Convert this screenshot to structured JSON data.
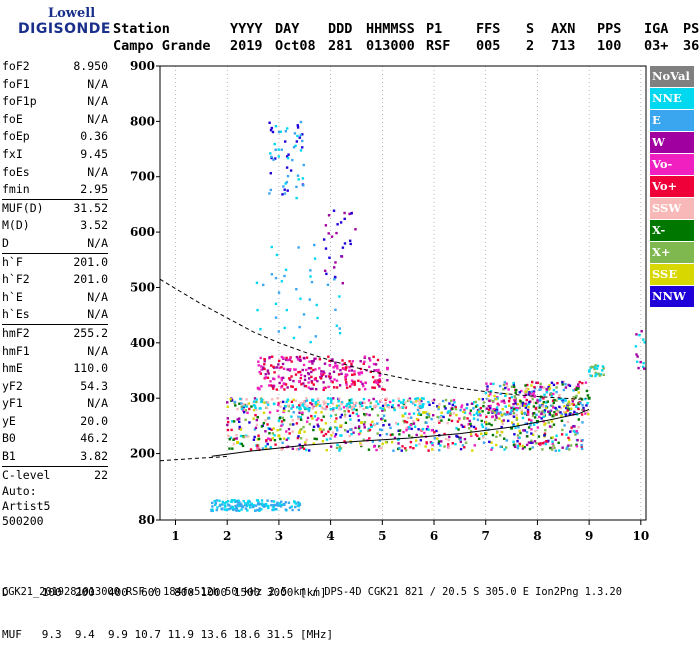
{
  "logo": {
    "line1": "Lowell",
    "line2": "DIGISONDE"
  },
  "header": {
    "labels": [
      "Station",
      "YYYY",
      "DAY",
      "DDD",
      "HHMMSS",
      "P1",
      "FFS",
      "S",
      "AXN",
      "PPS",
      "IGA",
      "PS"
    ],
    "values": [
      "Campo Grande",
      "2019",
      "Oct08",
      "281",
      "013000",
      "RSF",
      "005",
      "2",
      "713",
      "100",
      "03+",
      "36"
    ]
  },
  "params": [
    [
      {
        "k": "foF2",
        "v": "8.950"
      },
      {
        "k": "foF1",
        "v": "N/A"
      },
      {
        "k": "foF1p",
        "v": "N/A"
      },
      {
        "k": "foE",
        "v": "N/A"
      },
      {
        "k": "foEp",
        "v": "0.36"
      },
      {
        "k": "fxI",
        "v": "9.45"
      },
      {
        "k": "foEs",
        "v": "N/A"
      },
      {
        "k": "fmin",
        "v": "2.95"
      }
    ],
    [
      {
        "k": "MUF(D)",
        "v": "31.52"
      },
      {
        "k": "M(D)",
        "v": "3.52"
      },
      {
        "k": "D",
        "v": "N/A"
      }
    ],
    [
      {
        "k": "h`F",
        "v": "201.0"
      },
      {
        "k": "h`F2",
        "v": "201.0"
      },
      {
        "k": "h`E",
        "v": "N/A"
      },
      {
        "k": "h`Es",
        "v": "N/A"
      }
    ],
    [
      {
        "k": "hmF2",
        "v": "255.2"
      },
      {
        "k": "hmF1",
        "v": "N/A"
      },
      {
        "k": "hmE",
        "v": "110.0"
      },
      {
        "k": "yF2",
        "v": "54.3"
      },
      {
        "k": "yF1",
        "v": "N/A"
      },
      {
        "k": "yE",
        "v": "20.0"
      },
      {
        "k": "B0",
        "v": "46.2"
      },
      {
        "k": "B1",
        "v": "3.82"
      }
    ],
    [
      {
        "k": "C-level",
        "v": "22"
      }
    ]
  ],
  "auto": {
    "line1": "Auto:",
    "line2": "Artist5",
    "line3": "500200"
  },
  "legend": [
    {
      "label": "NoVal",
      "color": "#808080"
    },
    {
      "label": "NNE",
      "color": "#00d8f0"
    },
    {
      "label": "E",
      "color": "#3aa6f0"
    },
    {
      "label": "W",
      "color": "#a000a0"
    },
    {
      "label": "Vo-",
      "color": "#f020c0"
    },
    {
      "label": "Vo+",
      "color": "#f00038"
    },
    {
      "label": "SSW",
      "color": "#f8b8b8"
    },
    {
      "label": "X-",
      "color": "#007800"
    },
    {
      "label": "X+",
      "color": "#80b850"
    },
    {
      "label": "SSE",
      "color": "#d8d800"
    },
    {
      "label": "NNW",
      "color": "#2000d8"
    }
  ],
  "footer": {
    "d_row": "D     100  200  400  600  800 1000 1500 3000 [km]",
    "muf_row": "MUF   9.3  9.4  9.9 10.7 11.9 13.6 18.6 31.5 [MHz]",
    "file": "CGK21_2019281013000.RSF / 184fx512h 50 kHz 2.5 km / DPS-4D CGK21 821 / 20.5 S 305.0 E Ion2Png 1.3.20"
  },
  "chart_data": {
    "type": "scatter",
    "title": "",
    "xlabel": "",
    "ylabel": "",
    "xlim": [
      0.7,
      10.1
    ],
    "ylim": [
      80,
      900
    ],
    "xticks": [
      1,
      2,
      3,
      4,
      5,
      6,
      7,
      8,
      9,
      10
    ],
    "yticks": [
      80,
      200,
      300,
      400,
      500,
      600,
      700,
      800,
      900
    ],
    "grid": "dotted-vertical",
    "legend_position": "right",
    "series": [
      {
        "name": "X-",
        "color": "#007800",
        "x": [
          6.5,
          7.0,
          7.5,
          8.0,
          8.3,
          8.6,
          8.8,
          9.0
        ],
        "y": [
          228,
          236,
          246,
          258,
          268,
          280,
          290,
          300
        ]
      },
      {
        "name": "Vo-",
        "color": "#f020c0",
        "x": [
          2.6,
          2.9,
          3.1,
          3.4,
          3.7,
          4.0,
          4.3,
          4.6,
          4.9,
          5.1
        ],
        "y": [
          318,
          322,
          326,
          330,
          334,
          338,
          342,
          346,
          350,
          354
        ]
      },
      {
        "name": "SSE",
        "color": "#d8d800",
        "x": [
          2.2,
          2.6,
          3.0,
          3.4,
          3.8,
          4.2,
          4.6,
          5.0,
          5.4,
          5.8
        ],
        "y": [
          220,
          226,
          232,
          238,
          244,
          250,
          256,
          262,
          268,
          274
        ]
      },
      {
        "name": "E",
        "color": "#3aa6f0",
        "x": [
          1.7,
          1.9,
          2.1,
          2.3,
          2.5,
          2.7,
          2.9,
          3.1,
          3.4
        ],
        "y": [
          98,
          100,
          102,
          104,
          104,
          106,
          106,
          108,
          108
        ]
      }
    ],
    "curves": [
      {
        "name": "profile",
        "style": "solid",
        "x": [
          1.7,
          2.5,
          3.5,
          4.5,
          5.5,
          6.5,
          7.5,
          8.3,
          8.8,
          9.0
        ],
        "y": [
          195,
          205,
          215,
          222,
          228,
          236,
          248,
          262,
          272,
          280
        ]
      },
      {
        "name": "trace",
        "style": "dashed",
        "x": [
          0.7,
          1.0,
          1.5,
          2.0,
          2.5,
          3.0,
          3.5,
          4.0,
          4.5,
          5.0,
          5.5,
          6.0,
          6.5,
          7.0,
          7.5,
          8.0,
          8.5,
          8.8,
          8.95
        ],
        "y": [
          515,
          498,
          470,
          445,
          420,
          400,
          383,
          368,
          355,
          344,
          334,
          326,
          318,
          312,
          307,
          303,
          300,
          298,
          300
        ]
      },
      {
        "name": "low-trace",
        "style": "dashed",
        "x": [
          0.7,
          1.0,
          1.5,
          1.9,
          2.0
        ],
        "y": [
          187,
          189,
          192,
          194,
          195
        ]
      }
    ]
  }
}
